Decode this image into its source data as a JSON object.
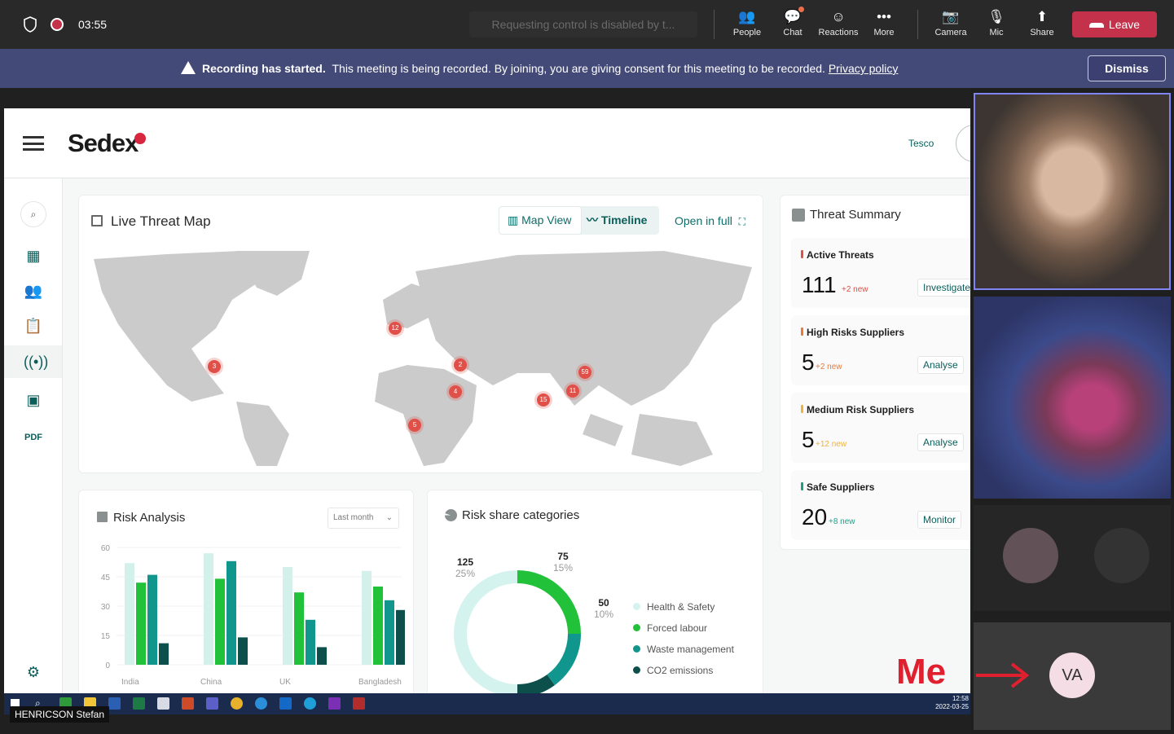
{
  "teams": {
    "timer": "03:55",
    "control_request": "Requesting control is disabled by t...",
    "buttons": {
      "people": "People",
      "chat": "Chat",
      "reactions": "Reactions",
      "more": "More",
      "camera": "Camera",
      "mic": "Mic",
      "share": "Share"
    },
    "leave_label": "Leave",
    "banner": {
      "bold": "Recording has started.",
      "text": "This meeting is being recorded. By joining, you are giving consent for this meeting to be recorded.",
      "link": "Privacy policy",
      "dismiss": "Dismiss"
    },
    "self": {
      "initials": "VA",
      "annotation": "Me"
    },
    "presenter_name": "HENRICSON Stefan"
  },
  "app": {
    "logo": "Sedex",
    "account": "Tesco",
    "threat_map": {
      "title": "Live Threat Map",
      "map_view": "Map View",
      "timeline": "Timeline",
      "open_full": "Open in full",
      "pins": [
        "12",
        "3",
        "2",
        "4",
        "5",
        "15",
        "11",
        "59"
      ]
    },
    "summary": {
      "title": "Threat Summary",
      "cards": [
        {
          "label": "Active Threats",
          "value": "111",
          "new": "+2 new",
          "action": "Investigate",
          "color": "#e04f48"
        },
        {
          "label": "High Risks Suppliers",
          "value": "5",
          "new": "+2 new",
          "action": "Analyse",
          "color": "#e87a3a"
        },
        {
          "label": "Medium Risk Suppliers",
          "value": "5",
          "new": "+12 new",
          "action": "Analyse",
          "color": "#f0b23a"
        },
        {
          "label": "Safe Suppliers",
          "value": "20",
          "new": "+8 new",
          "action": "Monitor",
          "color": "#1f9e86"
        }
      ]
    },
    "risk_analysis": {
      "title": "Risk Analysis",
      "period": "Last month"
    },
    "risk_share": {
      "title": "Risk share categories",
      "labels": [
        {
          "value": "125",
          "pct": "25%"
        },
        {
          "value": "75",
          "pct": "15%"
        },
        {
          "value": "50",
          "pct": "10%"
        }
      ],
      "legend": [
        "Health & Safety",
        "Forced labour",
        "Waste management",
        "CO2 emissions"
      ]
    }
  },
  "taskbar": {
    "time": "12:58",
    "date": "2022-03-25"
  },
  "chart_data": [
    {
      "type": "bar",
      "title": "Risk Analysis",
      "categories": [
        "India",
        "China",
        "UK",
        "Bangladesh"
      ],
      "ylim": [
        0,
        60
      ],
      "yticks": [
        "60",
        "45",
        "30",
        "15",
        "0"
      ],
      "series": [
        {
          "values": [
            52,
            57,
            50,
            48
          ],
          "color": "#d3f1ea"
        },
        {
          "values": [
            42,
            44,
            37,
            40
          ],
          "color": "#22c13a"
        },
        {
          "values": [
            46,
            53,
            23,
            33
          ],
          "color": "#10968d"
        },
        {
          "values": [
            11,
            14,
            9,
            28
          ],
          "color": "#0c4f4b"
        }
      ]
    },
    {
      "type": "pie",
      "title": "Risk share categories",
      "categories": [
        "Health & Safety",
        "Forced labour",
        "Waste management",
        "CO2 emissions"
      ],
      "values": [
        250,
        125,
        75,
        50
      ],
      "colors": [
        "#d5f3ee",
        "#22c13a",
        "#10968d",
        "#0c4f4b"
      ]
    }
  ]
}
